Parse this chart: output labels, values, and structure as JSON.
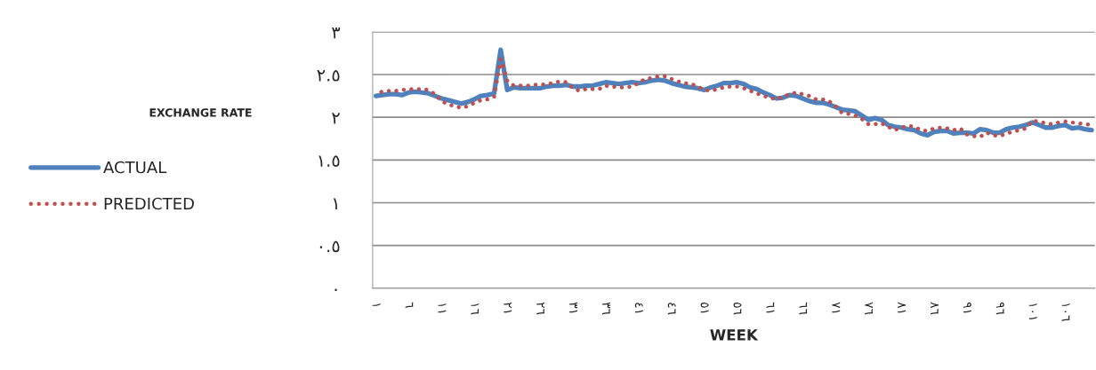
{
  "chart_data": {
    "type": "line",
    "xlabel": "WEEK",
    "annotations": [
      "EXCHANGE RATE"
    ],
    "categories": [
      "١",
      null,
      null,
      null,
      null,
      "٦",
      null,
      null,
      null,
      null,
      "١١",
      null,
      null,
      null,
      null,
      "١٦",
      null,
      null,
      null,
      null,
      "٢١",
      null,
      null,
      null,
      null,
      "٢٦",
      null,
      null,
      null,
      null,
      "٣١",
      null,
      null,
      null,
      null,
      "٣٦",
      null,
      null,
      null,
      null,
      "٤١",
      null,
      null,
      null,
      null,
      "٤٦",
      null,
      null,
      null,
      null,
      "٥١",
      null,
      null,
      null,
      null,
      "٥٦",
      null,
      null,
      null,
      null,
      "٦١",
      null,
      null,
      null,
      null,
      "٦٦",
      null,
      null,
      null,
      null,
      "٧١",
      null,
      null,
      null,
      null,
      "٧٦",
      null,
      null,
      null,
      null,
      "٨١",
      null,
      null,
      null,
      null,
      "٨٦",
      null,
      null,
      null,
      null,
      "٩١",
      null,
      null,
      null,
      null,
      "٩٦",
      null,
      null,
      null,
      null,
      "١٠١",
      null,
      null,
      null,
      null,
      "١٠٦",
      null,
      null,
      null,
      null
    ],
    "series": [
      {
        "name": "ACTUAL",
        "color": "#4f81bd",
        "line_style": "solid",
        "values": [
          2.25,
          2.26,
          2.27,
          2.27,
          2.26,
          2.29,
          2.3,
          2.29,
          2.28,
          2.25,
          2.22,
          2.2,
          2.18,
          2.16,
          2.18,
          2.21,
          2.25,
          2.26,
          2.28,
          2.79,
          2.32,
          2.35,
          2.34,
          2.34,
          2.34,
          2.34,
          2.36,
          2.37,
          2.37,
          2.38,
          2.36,
          2.36,
          2.37,
          2.37,
          2.39,
          2.41,
          2.4,
          2.39,
          2.4,
          2.41,
          2.4,
          2.41,
          2.43,
          2.44,
          2.43,
          2.4,
          2.38,
          2.36,
          2.35,
          2.34,
          2.32,
          2.35,
          2.37,
          2.4,
          2.4,
          2.41,
          2.39,
          2.35,
          2.33,
          2.29,
          2.26,
          2.22,
          2.23,
          2.26,
          2.25,
          2.22,
          2.19,
          2.17,
          2.17,
          2.15,
          2.12,
          2.09,
          2.08,
          2.07,
          2.02,
          1.97,
          1.99,
          1.97,
          1.91,
          1.89,
          1.88,
          1.86,
          1.85,
          1.81,
          1.79,
          1.83,
          1.84,
          1.84,
          1.81,
          1.82,
          1.82,
          1.81,
          1.86,
          1.85,
          1.82,
          1.82,
          1.86,
          1.88,
          1.89,
          1.91,
          1.94,
          1.91,
          1.88,
          1.88,
          1.9,
          1.91,
          1.87,
          1.88,
          1.86,
          1.85
        ]
      },
      {
        "name": "PREDICTED",
        "color": "#c0504d",
        "line_style": "dotted",
        "values": [
          2.28,
          2.3,
          2.31,
          2.31,
          2.32,
          2.33,
          2.33,
          2.33,
          2.32,
          2.27,
          2.19,
          2.15,
          2.13,
          2.11,
          2.13,
          2.17,
          2.2,
          2.21,
          2.24,
          2.68,
          2.43,
          2.37,
          2.37,
          2.37,
          2.38,
          2.38,
          2.39,
          2.4,
          2.42,
          2.41,
          2.34,
          2.31,
          2.33,
          2.33,
          2.33,
          2.37,
          2.36,
          2.35,
          2.35,
          2.36,
          2.4,
          2.45,
          2.46,
          2.48,
          2.48,
          2.45,
          2.42,
          2.4,
          2.39,
          2.36,
          2.32,
          2.31,
          2.33,
          2.35,
          2.36,
          2.36,
          2.34,
          2.31,
          2.28,
          2.25,
          2.23,
          2.21,
          2.24,
          2.27,
          2.29,
          2.27,
          2.25,
          2.21,
          2.21,
          2.19,
          2.13,
          2.05,
          2.04,
          2.02,
          1.98,
          1.92,
          1.92,
          1.93,
          1.89,
          1.85,
          1.88,
          1.9,
          1.89,
          1.85,
          1.84,
          1.87,
          1.88,
          1.87,
          1.85,
          1.87,
          1.8,
          1.78,
          1.77,
          1.82,
          1.79,
          1.78,
          1.81,
          1.83,
          1.85,
          1.87,
          1.96,
          1.95,
          1.93,
          1.92,
          1.94,
          1.95,
          1.94,
          1.93,
          1.92,
          1.91
        ]
      }
    ],
    "ylim": [
      0,
      3
    ],
    "yticks": [
      {
        "value": 0,
        "label": "٠"
      },
      {
        "value": 0.5,
        "label": "٠.٥"
      },
      {
        "value": 1,
        "label": "١"
      },
      {
        "value": 1.5,
        "label": "١.٥"
      },
      {
        "value": 2,
        "label": "٢"
      },
      {
        "value": 2.5,
        "label": "٢.٥"
      },
      {
        "value": 3,
        "label": "٣"
      }
    ],
    "grid": "y",
    "legend": "left",
    "marker": "none"
  }
}
